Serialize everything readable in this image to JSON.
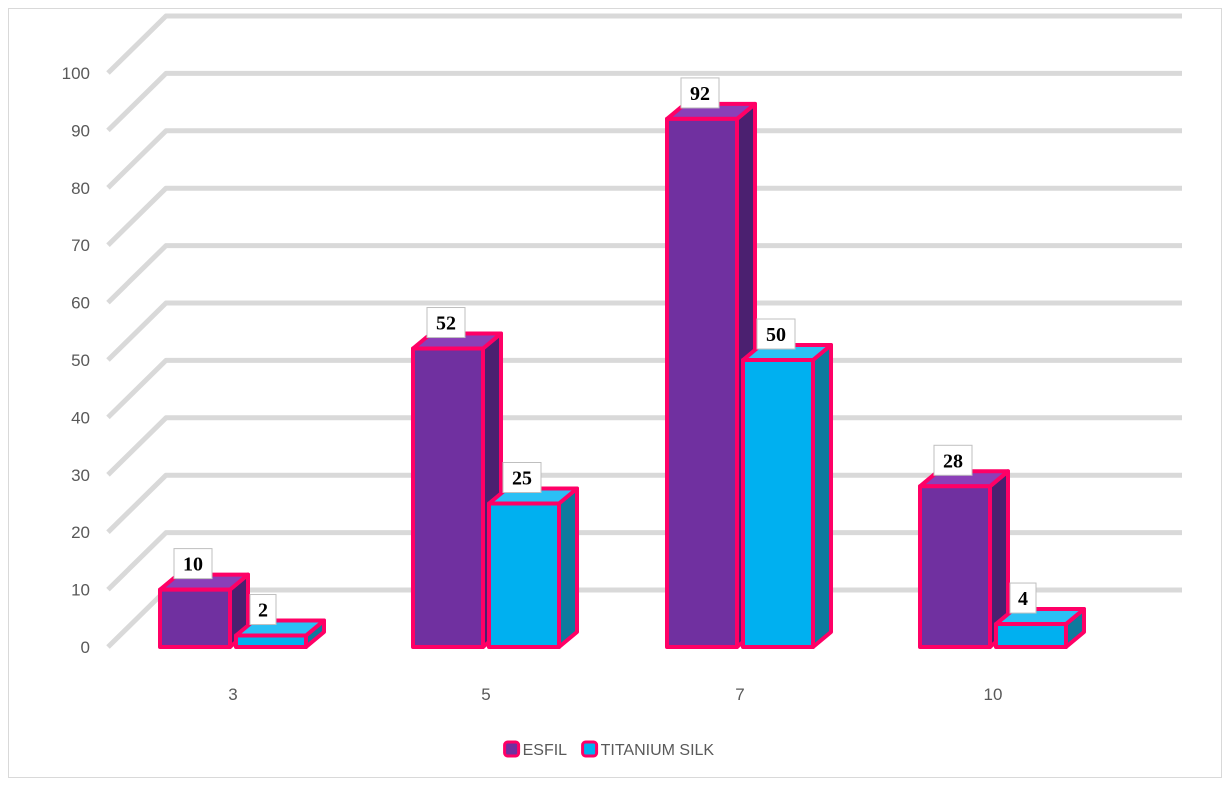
{
  "chart_data": {
    "type": "bar",
    "title": "",
    "xlabel": "",
    "ylabel": "",
    "categories": [
      "3",
      "5",
      "7",
      "10"
    ],
    "series": [
      {
        "name": "ESFIL",
        "values": [
          10,
          52,
          92,
          28
        ],
        "color": "#7030A0",
        "side_color": "#4B2070",
        "top_color": "#8B3FB8"
      },
      {
        "name": "TITANIUM SILK",
        "values": [
          2,
          25,
          50,
          4
        ],
        "color": "#00B0F0",
        "side_color": "#0E7A9E",
        "top_color": "#2BC0F5"
      }
    ],
    "ylim": [
      0,
      100
    ],
    "yticks": [
      0,
      10,
      20,
      30,
      40,
      50,
      60,
      70,
      80,
      90,
      100
    ],
    "grid": true,
    "legend_position": "bottom",
    "bar_outline_color": "#FF0066",
    "data_labels": true,
    "style": "3d-clustered-column"
  }
}
